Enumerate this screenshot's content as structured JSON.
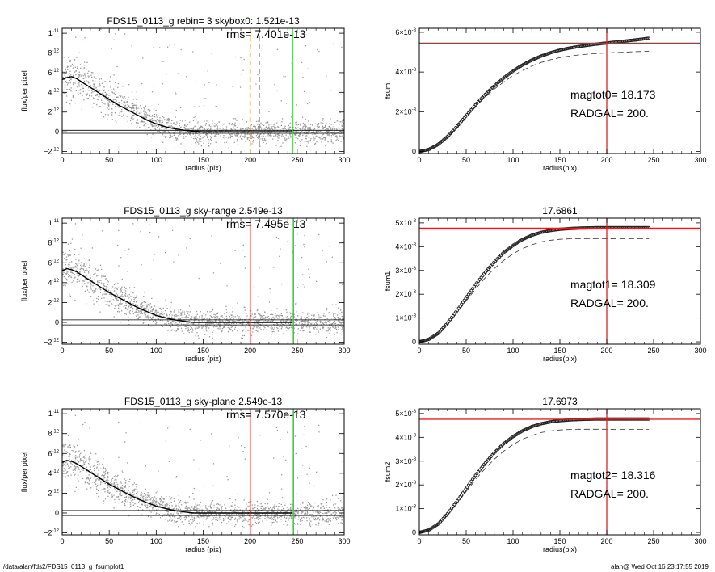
{
  "footer": {
    "path": "/data/alan/fds2/FDS15_0113_g_fsumplot1",
    "stamp": "alan@  Wed Oct 16 23:17:55 2019"
  },
  "colors": {
    "points": "#9a9a9a",
    "profile": "#000000",
    "orange": "#e8912b",
    "green": "#2ecc2e",
    "red": "#e02020",
    "axes": "#000000"
  },
  "chart_data": [
    {
      "type": "scatter",
      "panel": "profile-1",
      "title": "FDS15_0113_g rebin= 3    skybox0:  1.521e-13",
      "annotation": "rms= 7.401e-13",
      "xlabel": "radius (pix)",
      "ylabel": "flux/per pixel",
      "xlim": [
        0,
        300
      ],
      "ylim": [
        -2.2e-12,
        1.05e-11
      ],
      "xticks": [
        "0",
        "50",
        "100",
        "150",
        "200",
        "250",
        "300"
      ],
      "yticks": [
        {
          "v": -2e-12,
          "m": "−2",
          "e": "-12"
        },
        {
          "v": 0,
          "m": "0",
          "e": ""
        },
        {
          "v": 2e-12,
          "m": "2",
          "e": "-12"
        },
        {
          "v": 4e-12,
          "m": "4",
          "e": "-12"
        },
        {
          "v": 6e-12,
          "m": "6",
          "e": "-12"
        },
        {
          "v": 8e-12,
          "m": "8",
          "e": "-12"
        },
        {
          "v": 1e-11,
          "m": "1",
          "e": "-11"
        }
      ],
      "profile": {
        "x": [
          0,
          5,
          10,
          15,
          20,
          25,
          30,
          40,
          50,
          60,
          70,
          80,
          90,
          100,
          110,
          120,
          130,
          140,
          150,
          160,
          170,
          180,
          190,
          200,
          210,
          220,
          230,
          245
        ],
        "y": [
          5.3e-12,
          5.5e-12,
          5.6e-12,
          5.4e-12,
          5.1e-12,
          4.8e-12,
          4.5e-12,
          3.9e-12,
          3.3e-12,
          2.7e-12,
          2.2e-12,
          1.7e-12,
          1.2e-12,
          8e-13,
          5e-13,
          3e-13,
          1.5e-13,
          5e-14,
          0,
          0,
          0,
          0,
          0,
          0,
          0,
          0,
          0,
          0
        ]
      },
      "hlines": [
        {
          "y": 1.521e-13,
          "color": "black"
        },
        {
          "y": -1.521e-13,
          "color": "black"
        }
      ],
      "vlines": [
        {
          "x": 200,
          "color": "orange",
          "dashed": true
        },
        {
          "x": 210,
          "color": "gray",
          "dashed": true
        },
        {
          "x": 245,
          "color": "green",
          "dashed": false
        }
      ],
      "scatter_extent": [
        0,
        300
      ]
    },
    {
      "type": "line",
      "panel": "fsum-0",
      "title": "",
      "xlabel": "radius(pix)",
      "ylabel": "fsum",
      "xlim": [
        0,
        300
      ],
      "ylim": [
        -1e-09,
        6.2e-08
      ],
      "xticks": [
        "0",
        "50",
        "100",
        "150",
        "200",
        "250",
        "300"
      ],
      "yticks": [
        {
          "v": 0,
          "m": "0",
          "e": ""
        },
        {
          "v": 2e-08,
          "m": "2×10",
          "e": "-8"
        },
        {
          "v": 4e-08,
          "m": "4×10",
          "e": "-8"
        },
        {
          "v": 6e-08,
          "m": "6×10",
          "e": "-8"
        }
      ],
      "annotations": [
        "magtot0=  18.173",
        "RADGAL=    200."
      ],
      "series": [
        {
          "style": "points",
          "x": [
            0,
            10,
            20,
            30,
            40,
            50,
            60,
            70,
            80,
            90,
            100,
            110,
            120,
            130,
            140,
            150,
            160,
            170,
            180,
            190,
            200,
            210,
            220,
            230,
            245
          ],
          "y": [
            0,
            1e-09,
            3.5e-09,
            7.5e-09,
            1.25e-08,
            1.8e-08,
            2.35e-08,
            2.85e-08,
            3.3e-08,
            3.7e-08,
            4.05e-08,
            4.35e-08,
            4.6e-08,
            4.8e-08,
            4.97e-08,
            5.1e-08,
            5.2e-08,
            5.28e-08,
            5.35e-08,
            5.41e-08,
            5.46e-08,
            5.51e-08,
            5.56e-08,
            5.61e-08,
            5.7e-08
          ]
        },
        {
          "style": "dashed",
          "x": [
            0,
            10,
            20,
            30,
            40,
            50,
            60,
            70,
            80,
            90,
            100,
            110,
            120,
            130,
            140,
            150,
            160,
            170,
            180,
            190,
            200,
            210,
            220,
            230,
            245
          ],
          "y": [
            0,
            1e-09,
            3.4e-09,
            7.2e-09,
            1.2e-08,
            1.72e-08,
            2.25e-08,
            2.72e-08,
            3.14e-08,
            3.5e-08,
            3.82e-08,
            4.08e-08,
            4.3e-08,
            4.48e-08,
            4.62e-08,
            4.72e-08,
            4.8e-08,
            4.86e-08,
            4.9e-08,
            4.93e-08,
            4.96e-08,
            4.98e-08,
            5e-08,
            5.02e-08,
            5.05e-08
          ]
        }
      ],
      "hline": 5.45e-08,
      "vline": 200
    },
    {
      "type": "scatter",
      "panel": "profile-2",
      "title": "FDS15_0113_g sky-range  2.549e-13",
      "annotation": "rms= 7.495e-13",
      "xlabel": "radius (pix)",
      "ylabel": "flux/per pixel",
      "xlim": [
        0,
        300
      ],
      "ylim": [
        -2.2e-12,
        1.05e-11
      ],
      "xticks": [
        "0",
        "50",
        "100",
        "150",
        "200",
        "250",
        "300"
      ],
      "yticks": [
        {
          "v": -2e-12,
          "m": "−2",
          "e": "-12"
        },
        {
          "v": 0,
          "m": "0",
          "e": ""
        },
        {
          "v": 2e-12,
          "m": "2",
          "e": "-12"
        },
        {
          "v": 4e-12,
          "m": "4",
          "e": "-12"
        },
        {
          "v": 6e-12,
          "m": "6",
          "e": "-12"
        },
        {
          "v": 8e-12,
          "m": "8",
          "e": "-12"
        },
        {
          "v": 1e-11,
          "m": "1",
          "e": "-11"
        }
      ],
      "profile": {
        "x": [
          0,
          5,
          10,
          15,
          20,
          25,
          30,
          40,
          50,
          60,
          70,
          80,
          90,
          100,
          110,
          120,
          130,
          140,
          150,
          160,
          170,
          180,
          190,
          200,
          210,
          220,
          230,
          245
        ],
        "y": [
          5.2e-12,
          5.4e-12,
          5.3e-12,
          5.1e-12,
          4.8e-12,
          4.5e-12,
          4.2e-12,
          3.6e-12,
          3e-12,
          2.5e-12,
          2e-12,
          1.5e-12,
          1.1e-12,
          7e-13,
          4.5e-13,
          2.5e-13,
          1e-13,
          0,
          0,
          0,
          0,
          0,
          0,
          0,
          0,
          0,
          0,
          0
        ]
      },
      "hlines": [
        {
          "y": 2.549e-13,
          "color": "black"
        },
        {
          "y": -2.549e-13,
          "color": "black"
        }
      ],
      "vlines": [
        {
          "x": 200,
          "color": "red",
          "dashed": false
        },
        {
          "x": 246,
          "color": "green",
          "dashed": false
        }
      ],
      "scatter_extent": [
        0,
        300
      ]
    },
    {
      "type": "line",
      "panel": "fsum-1",
      "title": "17.6861",
      "xlabel": "radius(pix)",
      "ylabel": "fsum1",
      "xlim": [
        0,
        300
      ],
      "ylim": [
        -1e-09,
        5.2e-08
      ],
      "xticks": [
        "0",
        "50",
        "100",
        "150",
        "200",
        "250",
        "300"
      ],
      "yticks": [
        {
          "v": 0,
          "m": "0",
          "e": ""
        },
        {
          "v": 1e-08,
          "m": "1×10",
          "e": "-8"
        },
        {
          "v": 2e-08,
          "m": "2×10",
          "e": "-8"
        },
        {
          "v": 3e-08,
          "m": "3×10",
          "e": "-8"
        },
        {
          "v": 4e-08,
          "m": "4×10",
          "e": "-8"
        },
        {
          "v": 5e-08,
          "m": "5×10",
          "e": "-8"
        }
      ],
      "annotations": [
        "magtot1=  18.309",
        "RADGAL=    200."
      ],
      "series": [
        {
          "style": "points",
          "x": [
            0,
            10,
            20,
            30,
            40,
            50,
            60,
            70,
            80,
            90,
            100,
            110,
            120,
            130,
            140,
            150,
            160,
            170,
            180,
            190,
            200,
            210,
            220,
            230,
            245
          ],
          "y": [
            0,
            1e-09,
            3.5e-09,
            7.8e-09,
            1.3e-08,
            1.85e-08,
            2.4e-08,
            2.9e-08,
            3.35e-08,
            3.75e-08,
            4.05e-08,
            4.3e-08,
            4.48e-08,
            4.6e-08,
            4.68e-08,
            4.73e-08,
            4.76e-08,
            4.78e-08,
            4.79e-08,
            4.8e-08,
            4.8e-08,
            4.8e-08,
            4.8e-08,
            4.8e-08,
            4.8e-08
          ]
        },
        {
          "style": "dashed",
          "x": [
            0,
            10,
            20,
            30,
            40,
            50,
            60,
            70,
            80,
            90,
            100,
            110,
            120,
            130,
            140,
            150,
            160,
            170,
            180,
            190,
            200,
            210,
            220,
            230,
            245
          ],
          "y": [
            0,
            1e-09,
            3.4e-09,
            7.3e-09,
            1.2e-08,
            1.72e-08,
            2.22e-08,
            2.68e-08,
            3.08e-08,
            3.42e-08,
            3.7e-08,
            3.92e-08,
            4.08e-08,
            4.2e-08,
            4.27e-08,
            4.31e-08,
            4.33e-08,
            4.34e-08,
            4.34e-08,
            4.34e-08,
            4.34e-08,
            4.33e-08,
            4.33e-08,
            4.33e-08,
            4.33e-08
          ]
        }
      ],
      "hline": 4.78e-08,
      "vline": 200
    },
    {
      "type": "scatter",
      "panel": "profile-3",
      "title": "FDS15_0113_g sky-plane  2.549e-13",
      "annotation": "rms= 7.570e-13",
      "xlabel": "radius (pix)",
      "ylabel": "flux/per pixel",
      "xlim": [
        0,
        300
      ],
      "ylim": [
        -2.2e-12,
        1.05e-11
      ],
      "xticks": [
        "0",
        "50",
        "100",
        "150",
        "200",
        "250",
        "300"
      ],
      "yticks": [
        {
          "v": -2e-12,
          "m": "−2",
          "e": "-12"
        },
        {
          "v": 0,
          "m": "0",
          "e": ""
        },
        {
          "v": 2e-12,
          "m": "2",
          "e": "-12"
        },
        {
          "v": 4e-12,
          "m": "4",
          "e": "-12"
        },
        {
          "v": 6e-12,
          "m": "6",
          "e": "-12"
        },
        {
          "v": 8e-12,
          "m": "8",
          "e": "-12"
        },
        {
          "v": 1e-11,
          "m": "1",
          "e": "-11"
        }
      ],
      "profile": {
        "x": [
          0,
          5,
          10,
          15,
          20,
          25,
          30,
          40,
          50,
          60,
          70,
          80,
          90,
          100,
          110,
          120,
          130,
          140,
          150,
          160,
          170,
          180,
          190,
          200,
          210,
          220,
          230,
          245
        ],
        "y": [
          5.1e-12,
          5.3e-12,
          5.2e-12,
          5e-12,
          4.7e-12,
          4.4e-12,
          4.1e-12,
          3.5e-12,
          2.9e-12,
          2.4e-12,
          1.9e-12,
          1.45e-12,
          1.05e-12,
          7e-13,
          4.5e-13,
          2.5e-13,
          1e-13,
          0,
          0,
          0,
          0,
          0,
          0,
          0,
          0,
          0,
          0,
          0
        ]
      },
      "hlines": [
        {
          "y": 2.549e-13,
          "color": "black"
        },
        {
          "y": -2.549e-13,
          "color": "black"
        }
      ],
      "vlines": [
        {
          "x": 200,
          "color": "red",
          "dashed": false
        },
        {
          "x": 246,
          "color": "green",
          "dashed": false
        }
      ],
      "scatter_extent": [
        0,
        300
      ]
    },
    {
      "type": "line",
      "panel": "fsum-2",
      "title": "17.6973",
      "xlabel": "radius(pix)",
      "ylabel": "fsum2",
      "xlim": [
        0,
        300
      ],
      "ylim": [
        -1e-09,
        5.2e-08
      ],
      "xticks": [
        "0",
        "50",
        "100",
        "150",
        "200",
        "250",
        "300"
      ],
      "yticks": [
        {
          "v": 0,
          "m": "0",
          "e": ""
        },
        {
          "v": 1e-08,
          "m": "1×10",
          "e": "-8"
        },
        {
          "v": 2e-08,
          "m": "2×10",
          "e": "-8"
        },
        {
          "v": 3e-08,
          "m": "3×10",
          "e": "-8"
        },
        {
          "v": 4e-08,
          "m": "4×10",
          "e": "-8"
        },
        {
          "v": 5e-08,
          "m": "5×10",
          "e": "-8"
        }
      ],
      "annotations": [
        "magtot2=  18.316",
        "RADGAL=    200."
      ],
      "series": [
        {
          "style": "points",
          "x": [
            0,
            10,
            20,
            30,
            40,
            50,
            60,
            70,
            80,
            90,
            100,
            110,
            120,
            130,
            140,
            150,
            160,
            170,
            180,
            190,
            200,
            210,
            220,
            230,
            245
          ],
          "y": [
            0,
            1e-09,
            3.5e-09,
            7.8e-09,
            1.3e-08,
            1.85e-08,
            2.4e-08,
            2.9e-08,
            3.35e-08,
            3.73e-08,
            4.03e-08,
            4.27e-08,
            4.45e-08,
            4.57e-08,
            4.65e-08,
            4.7e-08,
            4.73e-08,
            4.75e-08,
            4.76e-08,
            4.77e-08,
            4.77e-08,
            4.77e-08,
            4.77e-08,
            4.77e-08,
            4.77e-08
          ]
        },
        {
          "style": "dashed",
          "x": [
            0,
            10,
            20,
            30,
            40,
            50,
            60,
            70,
            80,
            90,
            100,
            110,
            120,
            130,
            140,
            150,
            160,
            170,
            180,
            190,
            200,
            210,
            220,
            230,
            245
          ],
          "y": [
            0,
            1e-09,
            3.4e-09,
            7.3e-09,
            1.2e-08,
            1.72e-08,
            2.22e-08,
            2.68e-08,
            3.08e-08,
            3.42e-08,
            3.7e-08,
            3.92e-08,
            4.08e-08,
            4.2e-08,
            4.27e-08,
            4.31e-08,
            4.33e-08,
            4.34e-08,
            4.34e-08,
            4.34e-08,
            4.34e-08,
            4.33e-08,
            4.33e-08,
            4.33e-08,
            4.33e-08
          ]
        }
      ],
      "hline": 4.76e-08,
      "vline": 200
    }
  ]
}
